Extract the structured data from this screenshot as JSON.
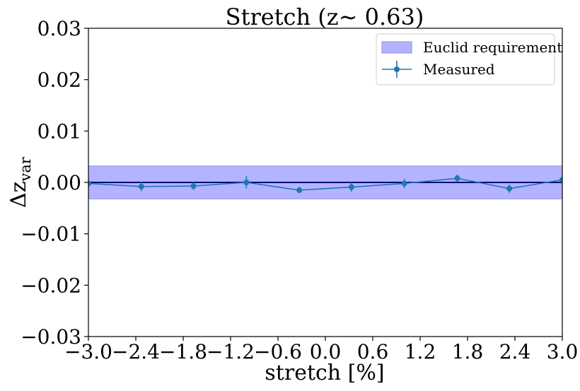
{
  "chart_data": {
    "type": "line",
    "title": "Stretch (z∼ 0.63)",
    "xlabel": "stretch [%]",
    "ylabel_main": "Δz",
    "ylabel_sub": "var",
    "xlim": [
      -3.0,
      3.0
    ],
    "ylim": [
      -0.03,
      0.03
    ],
    "xticks": [
      "−3.0",
      "−2.4",
      "−1.8",
      "−1.2",
      "−0.6",
      "0.0",
      "0.6",
      "1.2",
      "1.8",
      "2.4",
      "3.0"
    ],
    "xtick_values": [
      -3.0,
      -2.4,
      -1.8,
      -1.2,
      -0.6,
      0.0,
      0.6,
      1.2,
      1.8,
      2.4,
      3.0
    ],
    "yticks": [
      "−0.03",
      "−0.02",
      "−0.01",
      "0.00",
      "0.01",
      "0.02",
      "0.03"
    ],
    "ytick_values": [
      -0.03,
      -0.02,
      -0.01,
      0.0,
      0.01,
      0.02,
      0.03
    ],
    "grid": false,
    "legend_position": "top-right",
    "requirement_band": {
      "name": "Euclid requirement",
      "low": -0.0032,
      "high": 0.0032,
      "color": "#b3b3ff",
      "edge_color": "#8c8cf0"
    },
    "reference_line": {
      "y": 0.0,
      "color": "#000080"
    },
    "series": [
      {
        "name": "Measured",
        "color": "#1f77b4",
        "x": [
          -3.0,
          -2.33,
          -1.67,
          -1.0,
          -0.33,
          0.33,
          1.0,
          1.67,
          2.33,
          3.0
        ],
        "y": [
          -0.0002,
          -0.0008,
          -0.0007,
          0.0,
          -0.0015,
          -0.0009,
          -0.0002,
          0.0008,
          -0.0012,
          0.0005
        ],
        "yerr": [
          0.0008,
          0.0009,
          0.0008,
          0.0012,
          0.0006,
          0.0009,
          0.0009,
          0.0007,
          0.0008,
          0.0008
        ]
      }
    ]
  }
}
